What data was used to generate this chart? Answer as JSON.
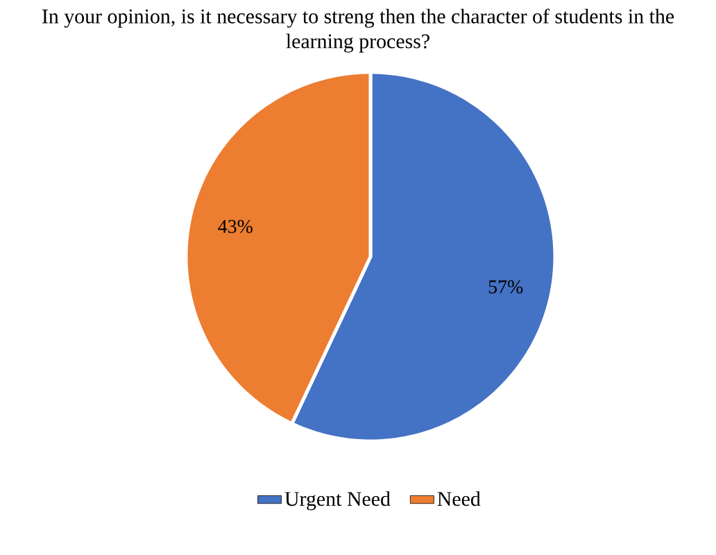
{
  "chart_data": {
    "type": "pie",
    "title": "In your opinion, is it necessary to streng then the character of students in the learning process?",
    "categories": [
      "Urgent Need",
      "Need"
    ],
    "values": [
      57,
      43
    ],
    "value_labels": [
      "57%",
      "43%"
    ],
    "colors": [
      "#4472c4",
      "#ed7d31"
    ],
    "legend": "bottom"
  }
}
